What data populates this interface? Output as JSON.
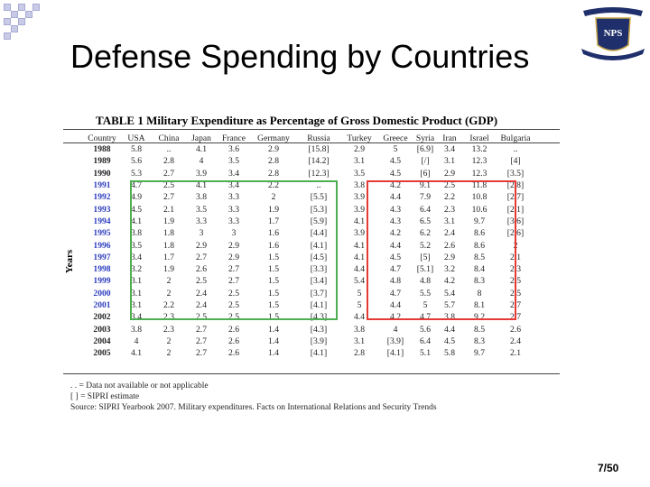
{
  "slide": {
    "title": "Defense Spending by Countries",
    "page_number": "7/50"
  },
  "logo": {
    "text": "NPS"
  },
  "table": {
    "title": "TABLE 1 Military Expenditure as Percentage of Gross Domestic Product (GDP)",
    "axis_label": "Years",
    "columns": [
      "Country",
      "USA",
      "China",
      "Japan",
      "France",
      "Germany",
      "Russia",
      "Turkey",
      "Greece",
      "Syria",
      "Iran",
      "Israel",
      "Bulgaria"
    ],
    "rows": [
      [
        "1988",
        "5.8",
        "..",
        "4.1",
        "3.6",
        "2.9",
        "[15.8]",
        "2.9",
        "5",
        "[6.9]",
        "3.4",
        "13.2",
        ".."
      ],
      [
        "1989",
        "5.6",
        "2.8",
        "4",
        "3.5",
        "2.8",
        "[14.2]",
        "3.1",
        "4.5",
        "[/]",
        "3.1",
        "12.3",
        "[4]"
      ],
      [
        "1990",
        "5.3",
        "2.7",
        "3.9",
        "3.4",
        "2.8",
        "[12.3]",
        "3.5",
        "4.5",
        "[6]",
        "2.9",
        "12.3",
        "[3.5]"
      ],
      [
        "1991",
        "4.7",
        "2.5",
        "4.1",
        "3.4",
        "2.2",
        "..",
        "3.8",
        "4.2",
        "9.1",
        "2.5",
        "11.8",
        "[2.8]"
      ],
      [
        "1992",
        "4.9",
        "2.7",
        "3.8",
        "3.3",
        "2",
        "[5.5]",
        "3.9",
        "4.4",
        "7.9",
        "2.2",
        "10.8",
        "[2.7]"
      ],
      [
        "1993",
        "4.5",
        "2.1",
        "3.5",
        "3.3",
        "1.9",
        "[5.3]",
        "3.9",
        "4.3",
        "6.4",
        "2.3",
        "10.6",
        "[2.1]"
      ],
      [
        "1994",
        "4.1",
        "1.9",
        "3.3",
        "3.3",
        "1.7",
        "[5.9]",
        "4.1",
        "4.3",
        "6.5",
        "3.1",
        "9.7",
        "[3.6]"
      ],
      [
        "1995",
        "3.8",
        "1.8",
        "3",
        "3",
        "1.6",
        "[4.4]",
        "3.9",
        "4.2",
        "6.2",
        "2.4",
        "8.6",
        "[2.6]"
      ],
      [
        "1996",
        "3.5",
        "1.8",
        "2.9",
        "2.9",
        "1.6",
        "[4.1]",
        "4.1",
        "4.4",
        "5.2",
        "2.6",
        "8.6",
        "2"
      ],
      [
        "1997",
        "3.4",
        "1.7",
        "2.7",
        "2.9",
        "1.5",
        "[4.5]",
        "4.1",
        "4.5",
        "[5]",
        "2.9",
        "8.5",
        "2.1"
      ],
      [
        "1998",
        "3.2",
        "1.9",
        "2.6",
        "2.7",
        "1.5",
        "[3.3]",
        "4.4",
        "4.7",
        "[5.1]",
        "3.2",
        "8.4",
        "2.3"
      ],
      [
        "1999",
        "3.1",
        "2",
        "2.5",
        "2.7",
        "1.5",
        "[3.4]",
        "5.4",
        "4.8",
        "4.8",
        "4.2",
        "8.3",
        "2.5"
      ],
      [
        "2000",
        "3.1",
        "2",
        "2.4",
        "2.5",
        "1.5",
        "[3.7]",
        "5",
        "4.7",
        "5.5",
        "5.4",
        "8",
        "2.5"
      ],
      [
        "2001",
        "3.1",
        "2.2",
        "2.4",
        "2.5",
        "1.5",
        "[4.1]",
        "5",
        "4.4",
        "5",
        "5.7",
        "8.1",
        "2.7"
      ],
      [
        "2002",
        "3.4",
        "2.3",
        "2.5",
        "2.5",
        "1.5",
        "[4.3]",
        "4.4",
        "4.2",
        "4.7",
        "3.8",
        "9.2",
        "2.7"
      ],
      [
        "2003",
        "3.8",
        "2.3",
        "2.7",
        "2.6",
        "1.4",
        "[4.3]",
        "3.8",
        "4",
        "5.6",
        "4.4",
        "8.5",
        "2.6"
      ],
      [
        "2004",
        "4",
        "2",
        "2.7",
        "2.6",
        "1.4",
        "[3.9]",
        "3.1",
        "[3.9]",
        "6.4",
        "4.5",
        "8.3",
        "2.4"
      ],
      [
        "2005",
        "4.1",
        "2",
        "2.7",
        "2.6",
        "1.4",
        "[4.1]",
        "2.8",
        "[4.1]",
        "5.1",
        "5.8",
        "9.7",
        "2.1"
      ]
    ],
    "notes": [
      ". . = Data not available or not applicable",
      "[ ] = SIPRI estimate",
      "Source: SIPRI Yearbook 2007. Military expenditures. Facts on International Relations and Security Trends"
    ],
    "highlight_colors": {
      "green": "#4cb050",
      "red": "#e53935"
    },
    "year_color_blue": "#2f3fbf"
  }
}
